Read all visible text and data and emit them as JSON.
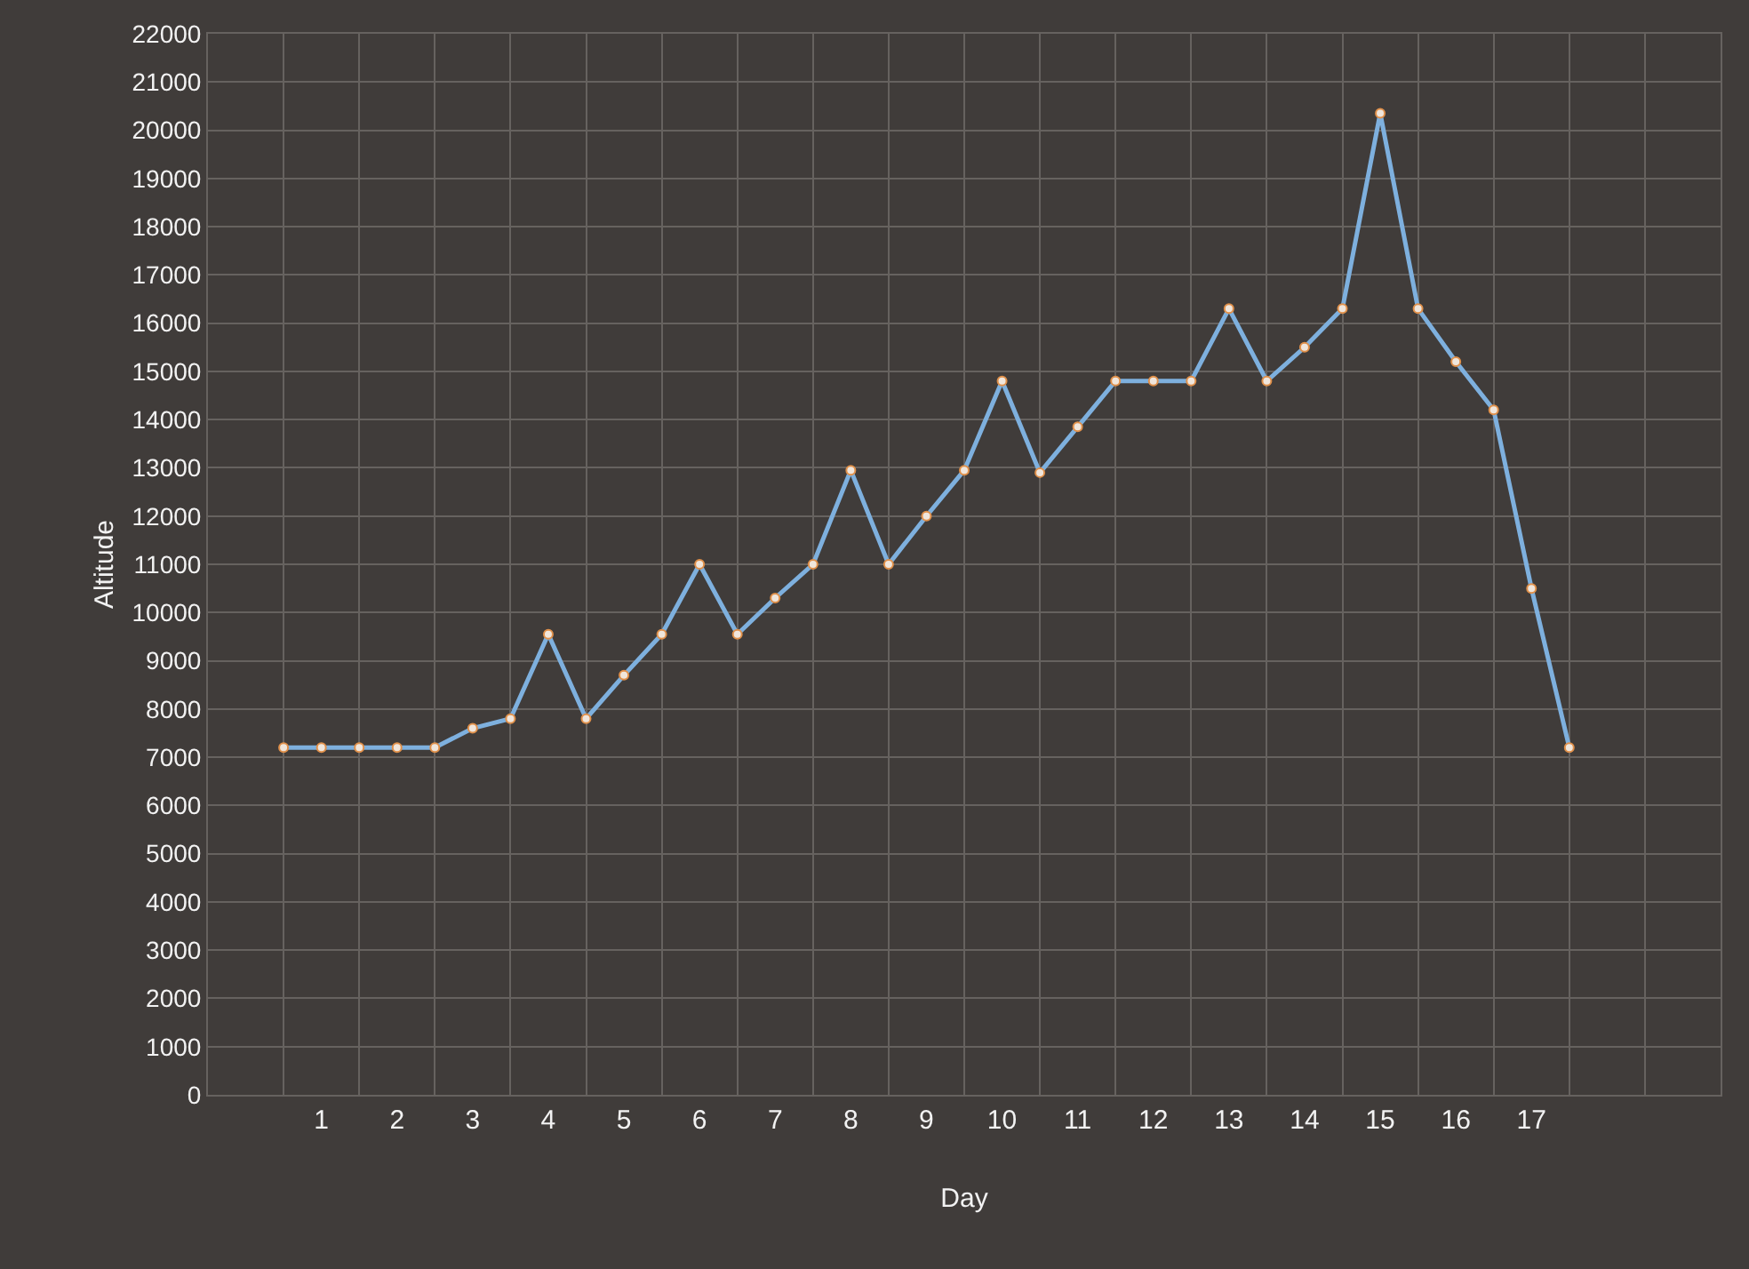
{
  "chart_data": {
    "type": "line",
    "xlabel": "Day",
    "ylabel": "Altitude",
    "x": [
      0.5,
      1,
      1.5,
      2,
      2.5,
      3,
      3.5,
      4,
      4.5,
      5,
      5.5,
      6,
      6.5,
      7,
      7.5,
      8,
      8.5,
      9,
      9.5,
      10,
      10.5,
      11,
      11.5,
      12,
      12.5,
      13,
      13.5,
      14,
      14.5,
      15,
      15.5,
      16,
      16.5,
      17,
      17.5
    ],
    "series": [
      {
        "color": "#7eb0de",
        "values": [
          7200,
          7200,
          7200,
          7200,
          7200,
          7600,
          7800,
          9550,
          7800,
          8700,
          9550,
          11000,
          9550,
          10300,
          11000,
          12950,
          11000,
          12000,
          12950,
          14800,
          12900,
          13850,
          14800,
          14800,
          14800,
          16300,
          14800,
          15500,
          16300,
          20350,
          16300,
          15200,
          14200,
          10500,
          7200
        ]
      }
    ],
    "xlim": [
      -0.5,
      19.5
    ],
    "xticks": [
      {
        "value": -0.5,
        "label": null
      },
      {
        "value": 0.5,
        "label": null
      },
      {
        "value": 1.5,
        "label": null
      },
      {
        "value": 2.5,
        "label": null
      },
      {
        "value": 3.5,
        "label": null
      },
      {
        "value": 4.5,
        "label": null
      },
      {
        "value": 5.5,
        "label": null
      },
      {
        "value": 6.5,
        "label": null
      },
      {
        "value": 7.5,
        "label": null
      },
      {
        "value": 8.5,
        "label": null
      },
      {
        "value": 9.5,
        "label": null
      },
      {
        "value": 10.5,
        "label": null
      },
      {
        "value": 11.5,
        "label": null
      },
      {
        "value": 12.5,
        "label": null
      },
      {
        "value": 13.5,
        "label": null
      },
      {
        "value": 14.5,
        "label": null
      },
      {
        "value": 15.5,
        "label": null
      },
      {
        "value": 16.5,
        "label": null
      },
      {
        "value": 17.5,
        "label": null
      },
      {
        "value": 18.5,
        "label": null
      },
      {
        "value": 19.5,
        "label": null
      },
      1,
      2,
      3,
      4,
      5,
      6,
      7,
      8,
      9,
      10,
      11,
      12,
      13,
      14,
      15,
      16,
      17
    ],
    "ylim": [
      0,
      22000
    ],
    "yticks": [
      0,
      1000,
      2000,
      3000,
      4000,
      5000,
      6000,
      7000,
      8000,
      9000,
      10000,
      11000,
      12000,
      13000,
      14000,
      15000,
      16000,
      17000,
      18000,
      19000,
      20000,
      21000,
      22000
    ],
    "grid": true,
    "marker": "circle",
    "line_style": "solid"
  }
}
